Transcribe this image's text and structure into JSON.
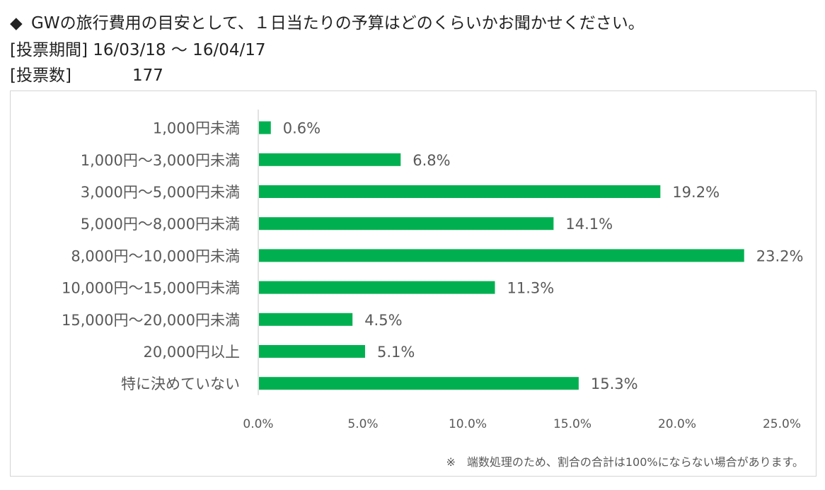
{
  "header": {
    "bullet": "◆",
    "question": "GWの旅行費用の目安として、１日当たりの予算はどのくらいかお聞かせください。",
    "period_label": "[投票期間]",
    "period_value": "16/03/18 ～ 16/04/17",
    "votes_label": "[投票数]",
    "votes_value": "177"
  },
  "footnote": "※　端数処理のため、割合の合計は100%にならない場合があります。",
  "colors": {
    "bar": "#00b050",
    "axis": "#d9d9d9",
    "text": "#595959"
  },
  "chart_data": {
    "type": "bar",
    "orientation": "horizontal",
    "categories": [
      "1,000円未満",
      "1,000円～3,000円未満",
      "3,000円～5,000円未満",
      "5,000円～8,000円未満",
      "8,000円～10,000円未満",
      "10,000円～15,000円未満",
      "15,000円～20,000円未満",
      "20,000円以上",
      "特に決めていない"
    ],
    "values": [
      0.6,
      6.8,
      19.2,
      14.1,
      23.2,
      11.3,
      4.5,
      5.1,
      15.3
    ],
    "value_labels": [
      "0.6%",
      "6.8%",
      "19.2%",
      "14.1%",
      "23.2%",
      "11.3%",
      "4.5%",
      "5.1%",
      "15.3%"
    ],
    "xlim": [
      0,
      25
    ],
    "xticks": [
      0,
      5,
      10,
      15,
      20,
      25
    ],
    "xtick_labels": [
      "0.0%",
      "5.0%",
      "10.0%",
      "15.0%",
      "20.0%",
      "25.0%"
    ],
    "grid": false,
    "legend": "none"
  }
}
